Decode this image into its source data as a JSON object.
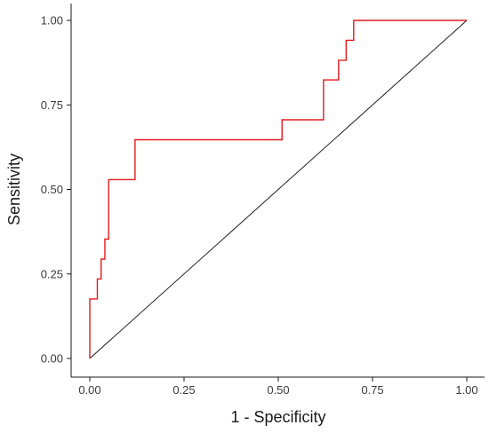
{
  "chart_data": {
    "type": "line",
    "title": "",
    "xlabel": "1 - Specificity",
    "ylabel": "Sensitivity",
    "xlim": [
      0,
      1
    ],
    "ylim": [
      0,
      1
    ],
    "grid": false,
    "x_ticks": [
      0,
      0.25,
      0.5,
      0.75,
      1
    ],
    "y_ticks": [
      0,
      0.25,
      0.5,
      0.75,
      1
    ],
    "x_tick_labels": [
      "0.00",
      "0.25",
      "0.50",
      "0.75",
      "1.00"
    ],
    "y_tick_labels": [
      "0.00",
      "0.25",
      "0.50",
      "0.75",
      "1.00"
    ],
    "series": [
      {
        "color": "#e31a1c",
        "step": true,
        "x": [
          0,
          0,
          0.02,
          0.02,
          0.03,
          0.03,
          0.04,
          0.04,
          0.05,
          0.05,
          0.12,
          0.12,
          0.51,
          0.51,
          0.62,
          0.62,
          0.66,
          0.66,
          0.68,
          0.68,
          0.7,
          0.7,
          1.0
        ],
        "y": [
          0,
          0.176,
          0.176,
          0.235,
          0.235,
          0.294,
          0.294,
          0.353,
          0.353,
          0.529,
          0.529,
          0.647,
          0.647,
          0.706,
          0.706,
          0.824,
          0.824,
          0.882,
          0.882,
          0.941,
          0.941,
          1.0,
          1.0
        ]
      },
      {
        "color": "#1a1a1a",
        "reference": true,
        "x": [
          0,
          1
        ],
        "y": [
          0,
          1
        ]
      }
    ]
  }
}
